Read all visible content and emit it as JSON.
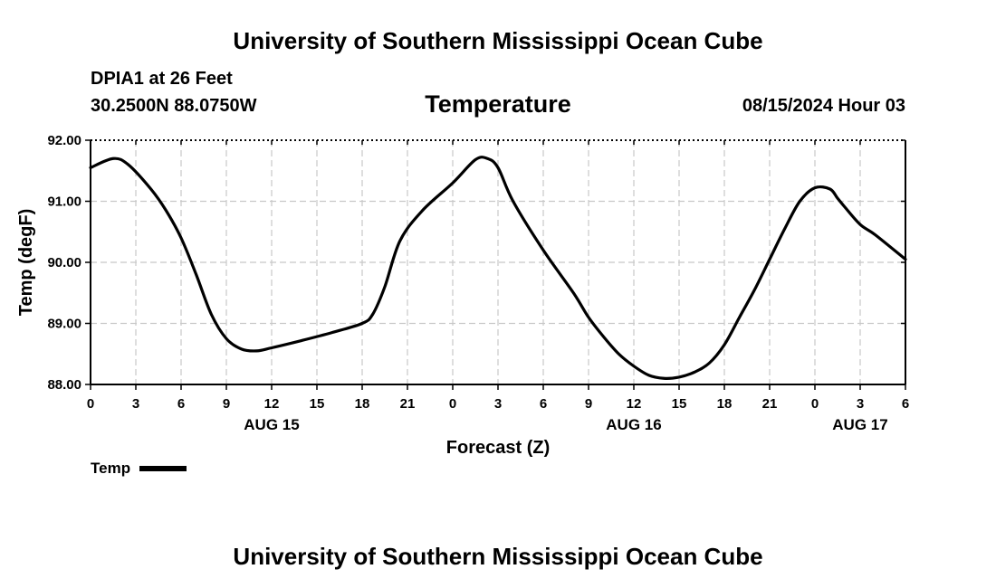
{
  "header": {
    "title": "University of Southern Mississippi Ocean Cube",
    "station": "DPIA1 at 26 Feet",
    "coords": "30.2500N  88.0750W",
    "chart_title": "Temperature",
    "timestamp": "08/15/2024 Hour 03"
  },
  "footer": {
    "title": "University of Southern Mississippi Ocean Cube"
  },
  "legend": {
    "label": "Temp"
  },
  "chart_data": {
    "type": "line",
    "title": "Temperature",
    "xlabel": "Forecast (Z)",
    "ylabel": "Temp (degF)",
    "ylim": [
      88.0,
      92.0
    ],
    "xlim": [
      0,
      54
    ],
    "y_ticks": [
      "88.00",
      "89.00",
      "90.00",
      "91.00",
      "92.00"
    ],
    "x_ticks": [
      "0",
      "3",
      "6",
      "9",
      "12",
      "15",
      "18",
      "21",
      "0",
      "3",
      "6",
      "9",
      "12",
      "15",
      "18",
      "21",
      "0",
      "3",
      "6"
    ],
    "x_day_labels": [
      {
        "hour": 12,
        "label": "AUG 15"
      },
      {
        "hour": 36,
        "label": "AUG 16"
      },
      {
        "hour": 51,
        "label": "AUG 17"
      }
    ],
    "grid": true,
    "legend_position": "bottom-left",
    "line_color": "#000000",
    "series": [
      {
        "name": "Temp",
        "x": [
          0,
          1.5,
          2.5,
          4,
          5,
          6,
          7,
          8,
          9,
          10,
          11,
          12,
          14,
          16,
          18,
          18.7,
          19.5,
          20.5,
          22,
          24,
          25.5,
          26.3,
          27,
          28,
          30,
          32,
          33,
          34,
          35,
          36,
          37,
          38,
          39,
          40,
          41,
          42,
          43,
          44,
          45,
          46,
          47,
          48,
          49,
          49.5,
          50,
          51,
          52,
          54
        ],
        "y": [
          91.55,
          91.7,
          91.6,
          91.2,
          90.85,
          90.4,
          89.8,
          89.15,
          88.75,
          88.58,
          88.55,
          88.6,
          88.72,
          88.85,
          89.0,
          89.15,
          89.6,
          90.35,
          90.85,
          91.3,
          91.68,
          91.7,
          91.55,
          91.0,
          90.2,
          89.5,
          89.1,
          88.78,
          88.5,
          88.3,
          88.15,
          88.1,
          88.12,
          88.2,
          88.35,
          88.65,
          89.1,
          89.55,
          90.05,
          90.55,
          91.0,
          91.22,
          91.2,
          91.05,
          90.9,
          90.62,
          90.45,
          90.05
        ]
      }
    ]
  }
}
